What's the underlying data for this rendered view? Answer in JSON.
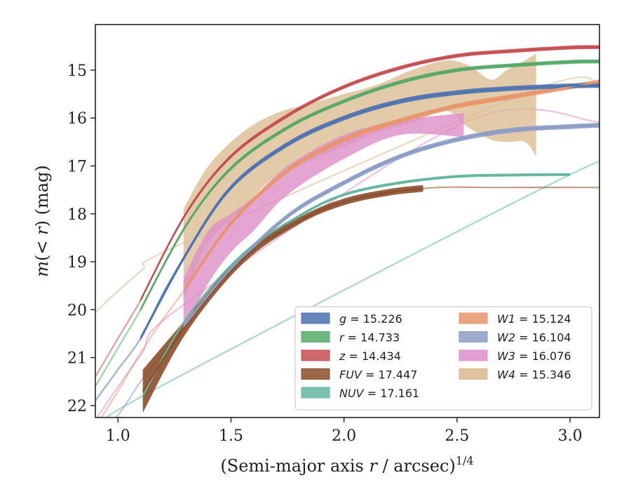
{
  "chart_data": {
    "type": "line",
    "xlabel": "(Semi-major axis r / arcsec)^{1/4}",
    "ylabel": "m(<r) (mag)",
    "xlim": [
      0.9,
      3.13
    ],
    "ylim": [
      22.25,
      14.05
    ],
    "y_inverted": true,
    "xticks": [
      "1.0",
      "1.5",
      "2.0",
      "2.5",
      "3.0"
    ],
    "yticks": [
      "15",
      "16",
      "17",
      "18",
      "19",
      "20",
      "21",
      "22"
    ],
    "legend_position": "lower-right",
    "grid": false,
    "series": [
      {
        "name": "g = 15.226",
        "color": "#4c72b0",
        "x": [
          1.1,
          1.3,
          1.5,
          1.75,
          2.0,
          2.25,
          2.5,
          2.75,
          3.0,
          3.13
        ],
        "y": [
          20.6,
          18.85,
          17.45,
          16.55,
          16.0,
          15.65,
          15.47,
          15.38,
          15.33,
          15.32
        ],
        "band_halfwidth": 0.05,
        "ext_x": [
          0.9,
          1.0,
          1.1,
          1.2,
          1.3
        ],
        "ext_y": [
          21.9,
          21.25,
          20.6,
          19.65,
          18.85
        ]
      },
      {
        "name": "r = 14.733",
        "color": "#55a868",
        "x": [
          1.1,
          1.3,
          1.5,
          1.75,
          2.0,
          2.25,
          2.5,
          2.75,
          3.0,
          3.13
        ],
        "y": [
          20.0,
          18.25,
          17.05,
          16.2,
          15.65,
          15.25,
          15.0,
          14.9,
          14.83,
          14.82
        ],
        "band_halfwidth": 0.04,
        "ext_x": [
          0.9,
          1.0,
          1.1,
          1.2,
          1.3
        ],
        "ext_y": [
          21.6,
          20.8,
          20.0,
          19.1,
          18.25
        ]
      },
      {
        "name": "z = 14.434",
        "color": "#c44e52",
        "x": [
          1.1,
          1.3,
          1.5,
          1.75,
          2.0,
          2.25,
          2.5,
          2.75,
          3.0,
          3.13
        ],
        "y": [
          19.8,
          18.0,
          16.8,
          15.95,
          15.35,
          14.95,
          14.7,
          14.6,
          14.53,
          14.52
        ],
        "band_halfwidth": 0.04,
        "ext_x": [
          0.9,
          1.0,
          1.1,
          1.2,
          1.3
        ],
        "ext_y": [
          21.4,
          20.6,
          19.8,
          18.85,
          18.0
        ]
      },
      {
        "name": "FUV = 17.447",
        "color": "#8c4e2a",
        "x": [
          1.11,
          1.3,
          1.55,
          1.8,
          2.0,
          2.2,
          2.35
        ],
        "y": [
          21.7,
          20.35,
          18.95,
          18.15,
          17.75,
          17.55,
          17.47
        ],
        "band_halfwidth": [
          0.45,
          0.15,
          0.1,
          0.07,
          0.07,
          0.07,
          0.07
        ],
        "ext_x": [
          1.11,
          1.3,
          1.55,
          1.8,
          2.0,
          2.35,
          2.7,
          3.13
        ],
        "ext_y": [
          21.7,
          20.35,
          18.95,
          18.15,
          17.75,
          17.47,
          17.45,
          17.45
        ]
      },
      {
        "name": "NUV = 17.161",
        "color": "#64b5a0",
        "x": [
          1.11,
          1.3,
          1.55,
          1.8,
          2.0,
          2.25,
          2.5,
          2.75,
          3.0
        ],
        "y": [
          21.8,
          20.2,
          18.85,
          18.05,
          17.6,
          17.35,
          17.22,
          17.19,
          17.18
        ],
        "band_halfwidth": 0.03,
        "ext_x": [
          0.9,
          1.0,
          1.11,
          3.0,
          3.13
        ],
        "ext_y": [
          22.6,
          22.3,
          21.8,
          17.18,
          17.17
        ]
      },
      {
        "name": "W1 = 15.124",
        "color": "#e8956a",
        "x": [
          1.3,
          1.5,
          1.75,
          2.0,
          2.25,
          2.5,
          2.75,
          3.0,
          3.13
        ],
        "y": [
          19.55,
          18.2,
          17.1,
          16.45,
          16.05,
          15.75,
          15.55,
          15.35,
          15.25
        ],
        "band_halfwidth": 0.05,
        "ext_x": [
          0.9,
          1.0,
          1.1,
          1.2,
          1.3
        ],
        "ext_y": [
          22.45,
          21.7,
          20.9,
          20.2,
          19.55
        ]
      },
      {
        "name": "W2 = 16.104",
        "color": "#8c9cc4",
        "x": [
          1.3,
          1.5,
          1.75,
          2.0,
          2.25,
          2.5,
          2.75,
          3.0,
          3.13
        ],
        "y": [
          20.3,
          19.15,
          18.05,
          17.35,
          16.8,
          16.45,
          16.25,
          16.18,
          16.15
        ],
        "band_halfwidth": 0.05,
        "ext_x": [
          0.9,
          1.0,
          1.1,
          1.2,
          1.3
        ],
        "ext_y": [
          22.6,
          22.2,
          21.5,
          20.9,
          20.3
        ]
      },
      {
        "name": "W3 = 16.076",
        "color": "#dd8fc8",
        "x": [
          1.29,
          1.4,
          1.5,
          1.6,
          1.75,
          2.0,
          2.25,
          2.53
        ],
        "y": [
          19.9,
          18.9,
          18.4,
          18.0,
          17.3,
          16.6,
          16.2,
          16.15
        ],
        "band_halfwidth": [
          0.55,
          0.55,
          0.4,
          0.35,
          0.3,
          0.25,
          0.15,
          0.25
        ],
        "ext_x": [
          0.9,
          1.1,
          1.29,
          2.53,
          3.13
        ],
        "ext_y": [
          22.3,
          20.95,
          19.9,
          16.1,
          16.08
        ]
      },
      {
        "name": "W4 = 15.346",
        "color": "#d9b98e",
        "x": [
          1.29,
          1.4,
          1.55,
          1.7,
          1.85,
          2.0,
          2.15,
          2.3,
          2.45,
          2.55,
          2.65,
          2.72,
          2.8,
          2.85
        ],
        "y": [
          18.6,
          17.7,
          17.0,
          16.55,
          16.3,
          16.05,
          15.85,
          15.55,
          15.35,
          15.5,
          15.8,
          16.2,
          15.6,
          15.9
        ],
        "band_lo": [
          19.8,
          18.6,
          17.9,
          17.2,
          16.9,
          16.6,
          16.3,
          16.1,
          15.85,
          16.2,
          16.45,
          16.5,
          16.5,
          16.8
        ],
        "band_hi": [
          17.9,
          17.0,
          16.3,
          15.9,
          15.7,
          15.5,
          15.3,
          15.0,
          14.8,
          14.9,
          15.2,
          15.0,
          14.8,
          14.65
        ],
        "ext_x": [
          0.9,
          1.1,
          1.29,
          2.85,
          3.13
        ],
        "ext_y": [
          20.05,
          19.2,
          18.6,
          15.4,
          15.35
        ]
      }
    ]
  }
}
